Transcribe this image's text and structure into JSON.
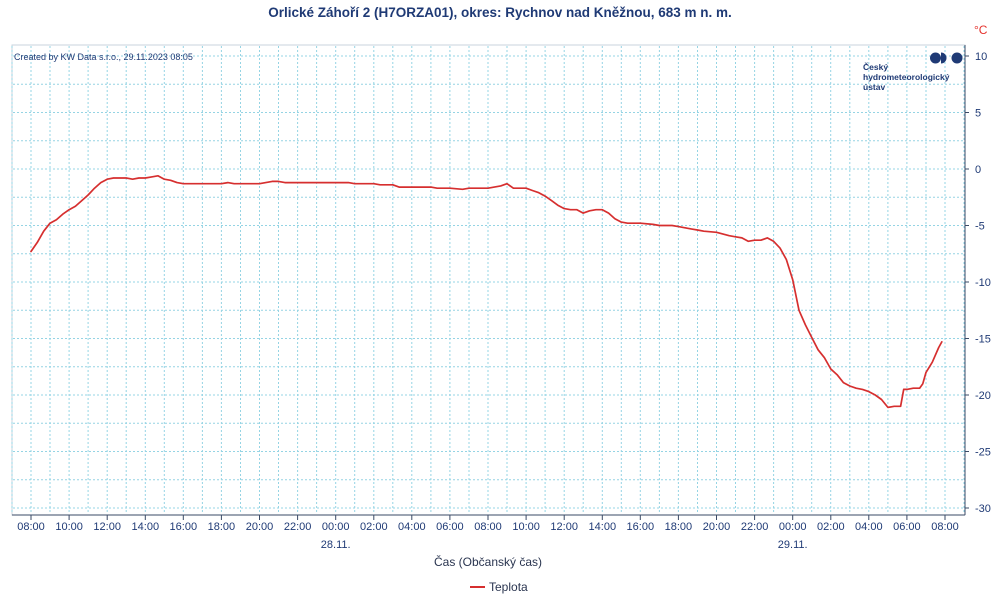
{
  "credit": "Created by KW Data s.r.o., 29.11.2023 08:05",
  "logo": {
    "icon": "chmu-logo-icon",
    "lines": [
      "Český",
      "hydrometeorologický",
      "ústav"
    ]
  },
  "colors": {
    "text": "#1f3a75",
    "unit": "#e5322d",
    "grid": "#95d4e4",
    "axis": "#3a4a66"
  },
  "chart_data": {
    "type": "line",
    "title": "Orlické Záhoří 2 (H7ORZA01), okres: Rychnov nad Kněžnou, 683 m n. m.",
    "xlabel": "Čas (Občanský čas)",
    "ylabel": "°C",
    "xlim": [
      "27.11. 08:00",
      "29.11. 08:00"
    ],
    "ylim": [
      -30,
      10
    ],
    "yticks": [
      10,
      5,
      0,
      -5,
      -10,
      -15,
      -20,
      -25,
      -30
    ],
    "xticks": [
      {
        "t": "27.11. 08:00",
        "label": "08:00"
      },
      {
        "t": "27.11. 10:00",
        "label": "10:00"
      },
      {
        "t": "27.11. 12:00",
        "label": "12:00"
      },
      {
        "t": "27.11. 14:00",
        "label": "14:00"
      },
      {
        "t": "27.11. 16:00",
        "label": "16:00"
      },
      {
        "t": "27.11. 18:00",
        "label": "18:00"
      },
      {
        "t": "27.11. 20:00",
        "label": "20:00"
      },
      {
        "t": "27.11. 22:00",
        "label": "22:00"
      },
      {
        "t": "28.11. 00:00",
        "label": "00:00"
      },
      {
        "t": "28.11. 02:00",
        "label": "02:00"
      },
      {
        "t": "28.11. 04:00",
        "label": "04:00"
      },
      {
        "t": "28.11. 06:00",
        "label": "06:00"
      },
      {
        "t": "28.11. 08:00",
        "label": "08:00"
      },
      {
        "t": "28.11. 10:00",
        "label": "10:00"
      },
      {
        "t": "28.11. 12:00",
        "label": "12:00"
      },
      {
        "t": "28.11. 14:00",
        "label": "14:00"
      },
      {
        "t": "28.11. 16:00",
        "label": "16:00"
      },
      {
        "t": "28.11. 18:00",
        "label": "18:00"
      },
      {
        "t": "28.11. 20:00",
        "label": "20:00"
      },
      {
        "t": "28.11. 22:00",
        "label": "22:00"
      },
      {
        "t": "29.11. 00:00",
        "label": "00:00"
      },
      {
        "t": "29.11. 02:00",
        "label": "02:00"
      },
      {
        "t": "29.11. 04:00",
        "label": "04:00"
      },
      {
        "t": "29.11. 06:00",
        "label": "06:00"
      },
      {
        "t": "29.11. 08:00",
        "label": "08:00"
      }
    ],
    "date_labels": [
      {
        "t": "28.11. 00:00",
        "label": "28.11."
      },
      {
        "t": "29.11. 00:00",
        "label": "29.11."
      }
    ],
    "grid": true,
    "legend": "bottom-center",
    "series": [
      {
        "name": "Teplota",
        "color": "#d62f2f",
        "points": [
          [
            "27.11. 08:00",
            -7.3
          ],
          [
            "27.11. 08:20",
            -6.5
          ],
          [
            "27.11. 08:40",
            -5.5
          ],
          [
            "27.11. 09:00",
            -4.8
          ],
          [
            "27.11. 09:20",
            -4.5
          ],
          [
            "27.11. 09:40",
            -4.0
          ],
          [
            "27.11. 10:00",
            -3.6
          ],
          [
            "27.11. 10:20",
            -3.3
          ],
          [
            "27.11. 10:40",
            -2.8
          ],
          [
            "27.11. 11:00",
            -2.3
          ],
          [
            "27.11. 11:20",
            -1.7
          ],
          [
            "27.11. 11:40",
            -1.2
          ],
          [
            "27.11. 12:00",
            -0.9
          ],
          [
            "27.11. 12:20",
            -0.8
          ],
          [
            "27.11. 12:40",
            -0.8
          ],
          [
            "27.11. 13:00",
            -0.8
          ],
          [
            "27.11. 13:20",
            -0.9
          ],
          [
            "27.11. 13:40",
            -0.8
          ],
          [
            "27.11. 14:00",
            -0.8
          ],
          [
            "27.11. 14:20",
            -0.7
          ],
          [
            "27.11. 14:40",
            -0.6
          ],
          [
            "27.11. 15:00",
            -0.9
          ],
          [
            "27.11. 15:20",
            -1.0
          ],
          [
            "27.11. 15:40",
            -1.2
          ],
          [
            "27.11. 16:00",
            -1.3
          ],
          [
            "27.11. 17:00",
            -1.3
          ],
          [
            "27.11. 18:00",
            -1.3
          ],
          [
            "27.11. 18:20",
            -1.2
          ],
          [
            "27.11. 18:40",
            -1.3
          ],
          [
            "27.11. 19:00",
            -1.3
          ],
          [
            "27.11. 20:00",
            -1.3
          ],
          [
            "27.11. 20:20",
            -1.2
          ],
          [
            "27.11. 20:40",
            -1.1
          ],
          [
            "27.11. 21:00",
            -1.1
          ],
          [
            "27.11. 21:20",
            -1.2
          ],
          [
            "27.11. 22:00",
            -1.2
          ],
          [
            "27.11. 23:00",
            -1.2
          ],
          [
            "28.11. 00:00",
            -1.2
          ],
          [
            "28.11. 00:40",
            -1.2
          ],
          [
            "28.11. 01:00",
            -1.3
          ],
          [
            "28.11. 02:00",
            -1.3
          ],
          [
            "28.11. 02:20",
            -1.4
          ],
          [
            "28.11. 03:00",
            -1.4
          ],
          [
            "28.11. 03:20",
            -1.6
          ],
          [
            "28.11. 04:00",
            -1.6
          ],
          [
            "28.11. 05:00",
            -1.6
          ],
          [
            "28.11. 05:20",
            -1.7
          ],
          [
            "28.11. 06:00",
            -1.7
          ],
          [
            "28.11. 06:40",
            -1.8
          ],
          [
            "28.11. 07:00",
            -1.7
          ],
          [
            "28.11. 08:00",
            -1.7
          ],
          [
            "28.11. 08:20",
            -1.6
          ],
          [
            "28.11. 08:40",
            -1.5
          ],
          [
            "28.11. 09:00",
            -1.3
          ],
          [
            "28.11. 09:20",
            -1.7
          ],
          [
            "28.11. 10:00",
            -1.7
          ],
          [
            "28.11. 10:20",
            -1.9
          ],
          [
            "28.11. 10:40",
            -2.1
          ],
          [
            "28.11. 11:00",
            -2.4
          ],
          [
            "28.11. 11:20",
            -2.8
          ],
          [
            "28.11. 11:40",
            -3.2
          ],
          [
            "28.11. 12:00",
            -3.5
          ],
          [
            "28.11. 12:20",
            -3.6
          ],
          [
            "28.11. 12:40",
            -3.6
          ],
          [
            "28.11. 13:00",
            -3.9
          ],
          [
            "28.11. 13:20",
            -3.7
          ],
          [
            "28.11. 13:40",
            -3.6
          ],
          [
            "28.11. 14:00",
            -3.6
          ],
          [
            "28.11. 14:20",
            -3.9
          ],
          [
            "28.11. 14:40",
            -4.4
          ],
          [
            "28.11. 15:00",
            -4.7
          ],
          [
            "28.11. 15:20",
            -4.8
          ],
          [
            "28.11. 16:00",
            -4.8
          ],
          [
            "28.11. 16:40",
            -4.9
          ],
          [
            "28.11. 17:00",
            -5.0
          ],
          [
            "28.11. 17:40",
            -5.0
          ],
          [
            "28.11. 18:00",
            -5.1
          ],
          [
            "28.11. 18:40",
            -5.3
          ],
          [
            "28.11. 19:00",
            -5.4
          ],
          [
            "28.11. 19:20",
            -5.5
          ],
          [
            "28.11. 20:00",
            -5.6
          ],
          [
            "28.11. 20:40",
            -5.9
          ],
          [
            "28.11. 21:00",
            -6.0
          ],
          [
            "28.11. 21:20",
            -6.1
          ],
          [
            "28.11. 21:40",
            -6.4
          ],
          [
            "28.11. 22:00",
            -6.3
          ],
          [
            "28.11. 22:20",
            -6.3
          ],
          [
            "28.11. 22:40",
            -6.1
          ],
          [
            "28.11. 23:00",
            -6.4
          ],
          [
            "28.11. 23:20",
            -7.0
          ],
          [
            "28.11. 23:40",
            -8.0
          ],
          [
            "29.11. 00:00",
            -9.8
          ],
          [
            "29.11. 00:20",
            -12.5
          ],
          [
            "29.11. 00:40",
            -13.8
          ],
          [
            "29.11. 01:00",
            -14.9
          ],
          [
            "29.11. 01:20",
            -16.0
          ],
          [
            "29.11. 01:40",
            -16.7
          ],
          [
            "29.11. 02:00",
            -17.7
          ],
          [
            "29.11. 02:20",
            -18.2
          ],
          [
            "29.11. 02:40",
            -18.9
          ],
          [
            "29.11. 03:00",
            -19.2
          ],
          [
            "29.11. 03:20",
            -19.4
          ],
          [
            "29.11. 03:40",
            -19.5
          ],
          [
            "29.11. 04:00",
            -19.7
          ],
          [
            "29.11. 04:20",
            -20.0
          ],
          [
            "29.11. 04:40",
            -20.4
          ],
          [
            "29.11. 05:00",
            -21.1
          ],
          [
            "29.11. 05:20",
            -21.0
          ],
          [
            "29.11. 05:40",
            -21.0
          ],
          [
            "29.11. 05:50",
            -19.5
          ],
          [
            "29.11. 06:00",
            -19.5
          ],
          [
            "29.11. 06:20",
            -19.4
          ],
          [
            "29.11. 06:40",
            -19.4
          ],
          [
            "29.11. 06:50",
            -19.0
          ],
          [
            "29.11. 07:00",
            -18.0
          ],
          [
            "29.11. 07:20",
            -17.1
          ],
          [
            "29.11. 07:40",
            -15.8
          ],
          [
            "29.11. 07:50",
            -15.3
          ]
        ]
      }
    ]
  }
}
